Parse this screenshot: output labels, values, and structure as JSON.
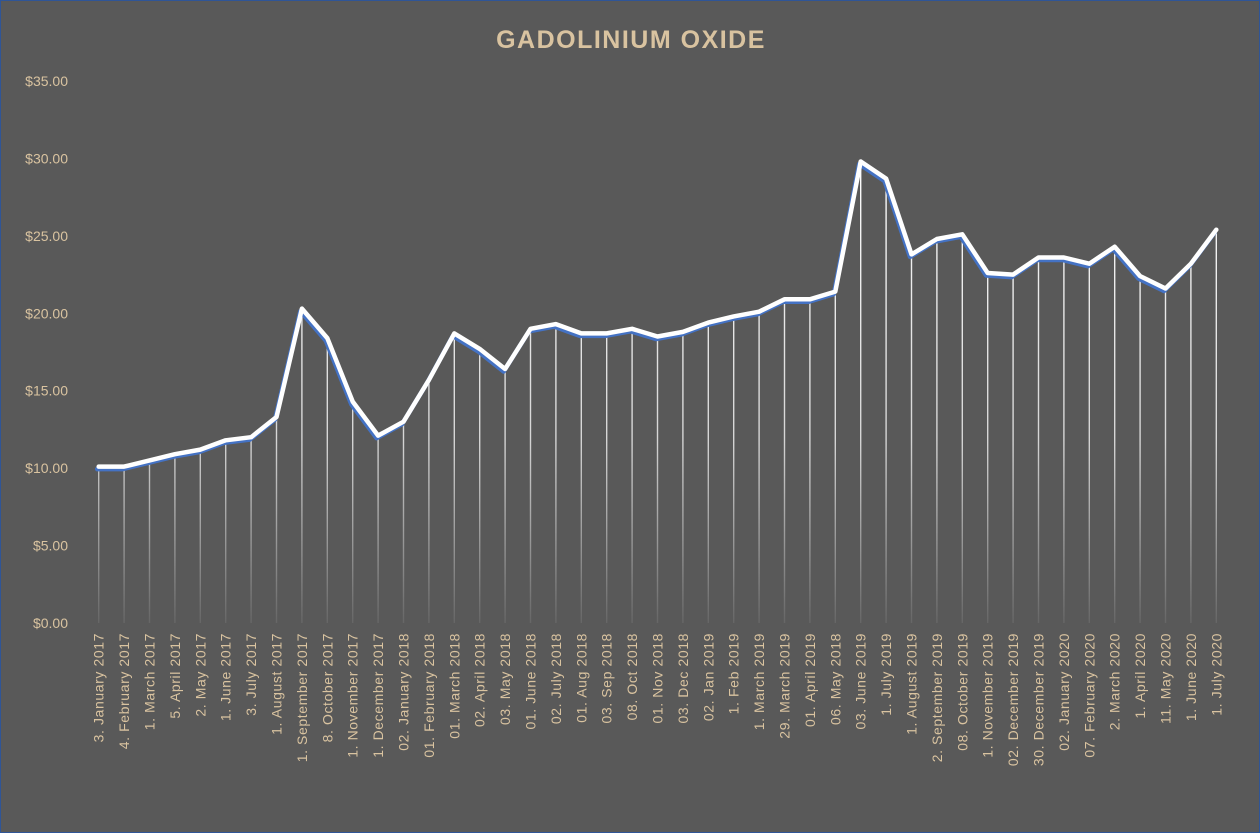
{
  "colors": {
    "background": "#595959",
    "title": "#d9c3a0",
    "axis_label": "#d9c3a0",
    "series_line": "#ffffff",
    "series_shadow": "#4472c4",
    "drop_lines": "#ffffff"
  },
  "chart_data": {
    "type": "line",
    "title": "GADOLINIUM OXIDE",
    "xlabel": "",
    "ylabel": "",
    "ylim": [
      0,
      35
    ],
    "yticks": [
      "$0.00",
      "$5.00",
      "$10.00",
      "$15.00",
      "$20.00",
      "$25.00",
      "$30.00",
      "$35.00"
    ],
    "ytick_values": [
      0,
      5,
      10,
      15,
      20,
      25,
      30,
      35
    ],
    "grid": false,
    "legend": "none",
    "drop_lines": true,
    "categories": [
      "3. January 2017",
      "4. February 2017",
      "1. March 2017",
      "5. April 2017",
      "2. May 2017",
      "1. June 2017",
      "3. July 2017",
      "1. August 2017",
      "1. September 2017",
      "8. October 2017",
      "1. November 2017",
      "1. December 2017",
      "02. January 2018",
      "01. February 2018",
      "01. March 2018",
      "02. April 2018",
      "03. May 2018",
      "01. June 2018",
      "02. July 2018",
      "01. Aug 2018",
      "03. Sep 2018",
      "08. Oct 2018",
      "01. Nov 2018",
      "03. Dec 2018",
      "02. Jan 2019",
      "1. Feb 2019",
      "1. March 2019",
      "29. March 2019",
      "01. April 2019",
      "06. May 2018",
      "03. June 2019",
      "1. July 2019",
      "1. August 2019",
      "2. September 2019",
      "08. October 2019",
      "1. November 2019",
      "02. December 2019",
      "30. December 2019",
      "02. January 2020",
      "07. February 2020",
      "2. March 2020",
      "1. April 2020",
      "11. May 2020",
      "1. June 2020",
      "1. July 2020"
    ],
    "series": [
      {
        "values": [
          10.1,
          10.1,
          10.5,
          10.9,
          11.2,
          11.8,
          12.0,
          13.3,
          20.3,
          18.4,
          14.3,
          12.1,
          13.0,
          15.7,
          18.7,
          17.7,
          16.4,
          19.0,
          19.3,
          18.7,
          18.7,
          19.0,
          18.5,
          18.8,
          19.4,
          19.8,
          20.1,
          20.9,
          20.9,
          21.4,
          29.8,
          28.7,
          23.8,
          24.8,
          25.1,
          22.6,
          22.5,
          23.6,
          23.6,
          23.2,
          24.3,
          22.4,
          21.6,
          23.2,
          25.4
        ]
      }
    ]
  }
}
